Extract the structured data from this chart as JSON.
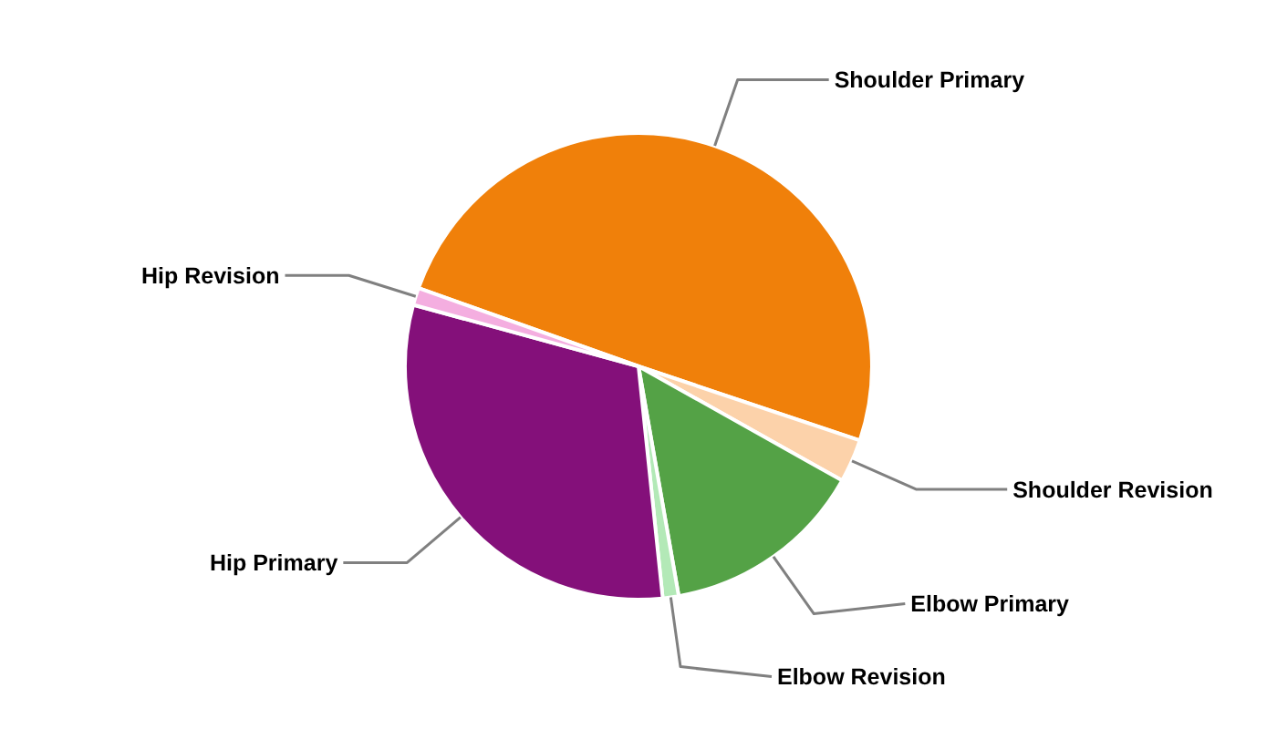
{
  "chart_data": {
    "type": "pie",
    "categories": [
      "Shoulder Primary",
      "Shoulder Revision",
      "Elbow Primary",
      "Elbow Revision",
      "Hip Primary",
      "Hip Revision"
    ],
    "values": [
      49.7,
      3.0,
      14.1,
      1.1,
      30.9,
      1.2
    ],
    "colors": [
      "#f0800a",
      "#fcd2aa",
      "#54a246",
      "#b3e9b7",
      "#84107a",
      "#f4aee0"
    ]
  }
}
